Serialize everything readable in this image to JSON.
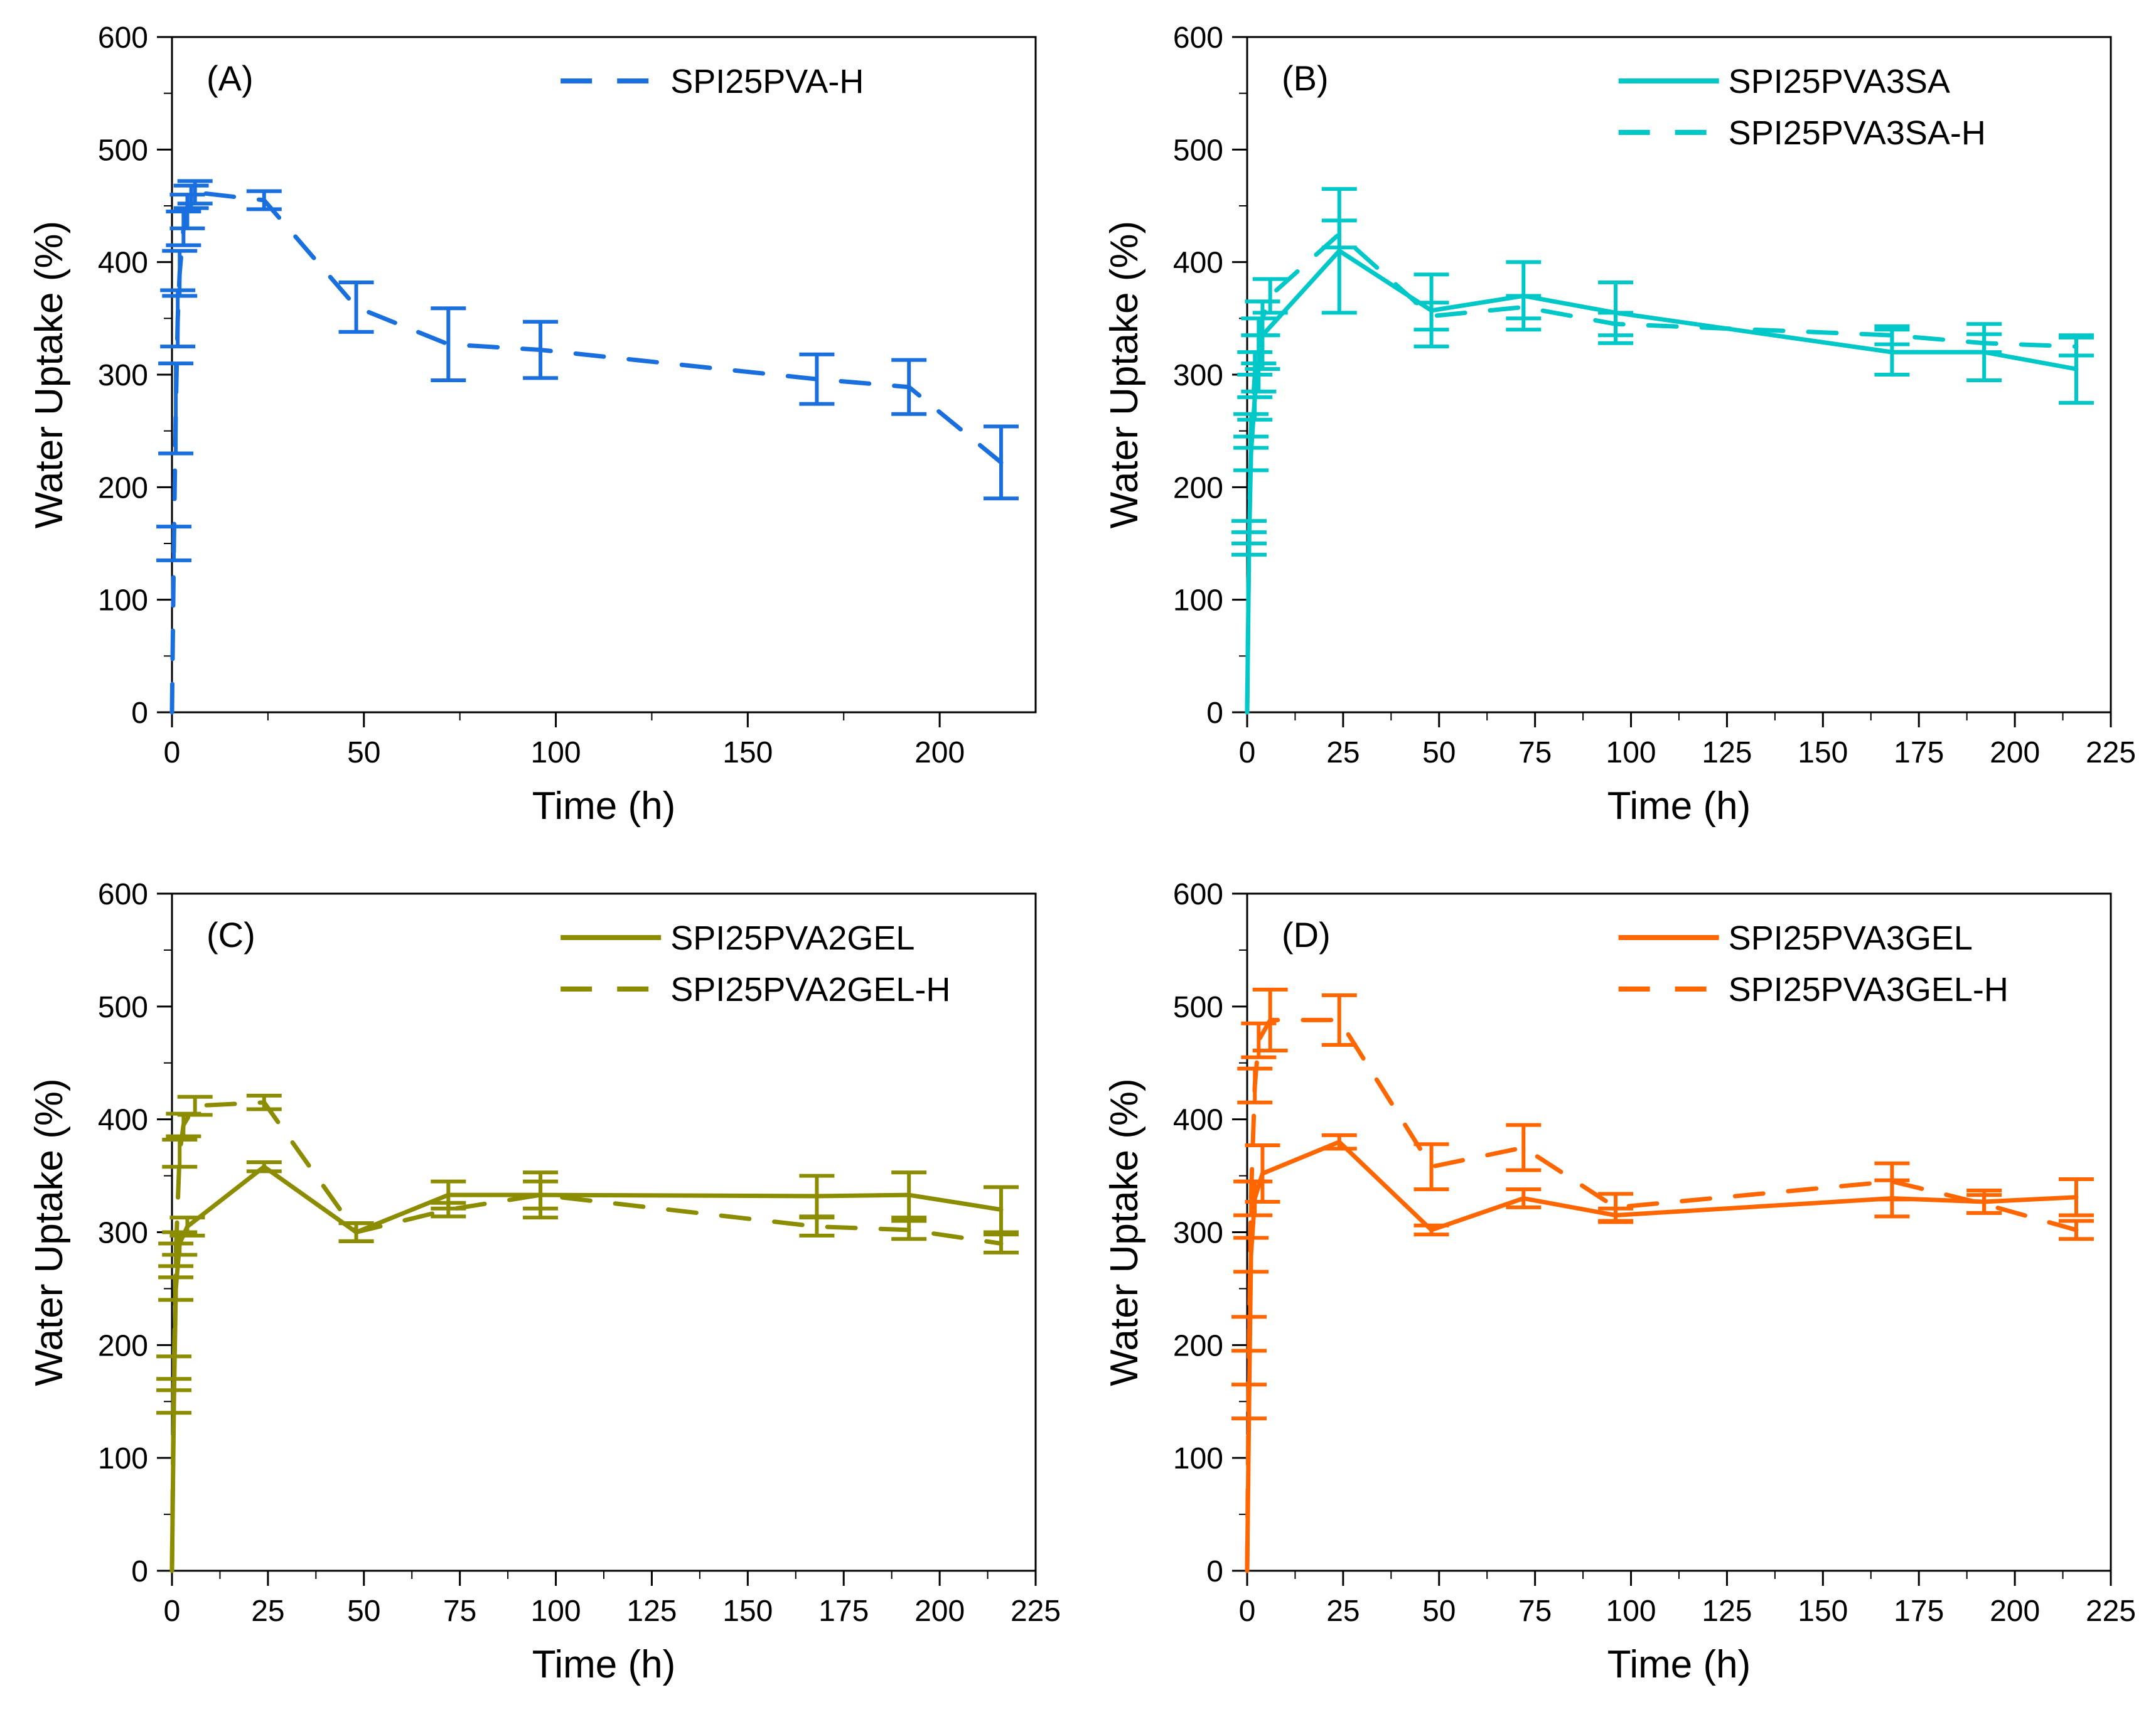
{
  "chart_data": [
    {
      "type": "line",
      "panel_label": "(A)",
      "xlabel": "Time (h)",
      "ylabel": "Water Uptake (%)",
      "xlim": [
        0,
        225
      ],
      "ylim": [
        0,
        600
      ],
      "xticks": [
        0,
        50,
        100,
        150,
        200
      ],
      "yticks": [
        0,
        100,
        200,
        300,
        400,
        500,
        600
      ],
      "legend_position": "top-center",
      "series": [
        {
          "name": "SPI25PVA-H",
          "color": "#1a6fdf",
          "dash": true,
          "x": [
            0,
            0.5,
            1,
            1.5,
            2,
            3,
            4,
            5,
            6,
            24,
            48,
            72,
            96,
            168,
            192,
            216
          ],
          "y": [
            0,
            150,
            270,
            350,
            390,
            430,
            445,
            458,
            462,
            455,
            360,
            327,
            322,
            296,
            289,
            222
          ],
          "err": [
            0,
            15,
            40,
            25,
            20,
            15,
            15,
            10,
            10,
            8,
            22,
            32,
            25,
            22,
            24,
            32
          ]
        }
      ]
    },
    {
      "type": "line",
      "panel_label": "(B)",
      "xlabel": "Time (h)",
      "ylabel": "Water Uptake (%)",
      "xlim": [
        0,
        225
      ],
      "ylim": [
        0,
        600
      ],
      "xticks": [
        0,
        25,
        50,
        75,
        100,
        125,
        150,
        175,
        200,
        225
      ],
      "yticks": [
        0,
        100,
        200,
        300,
        400,
        500,
        600
      ],
      "legend_position": "top-right",
      "series": [
        {
          "name": "SPI25PVA3SA",
          "color": "#00c8c8",
          "dash": false,
          "x": [
            0,
            0.5,
            1,
            2,
            3,
            4,
            24,
            48,
            72,
            96,
            168,
            192,
            216
          ],
          "y": [
            0,
            150,
            230,
            280,
            310,
            335,
            410,
            357,
            370,
            355,
            320,
            320,
            305
          ],
          "err": [
            0,
            10,
            15,
            20,
            25,
            30,
            55,
            32,
            30,
            27,
            20,
            25,
            30
          ]
        },
        {
          "name": "SPI25PVA3SA-H",
          "color": "#00c8c8",
          "dash": true,
          "x": [
            0,
            0.5,
            1,
            2,
            3,
            4,
            6,
            24,
            48,
            72,
            96,
            168,
            192,
            216
          ],
          "y": [
            0,
            160,
            250,
            300,
            330,
            350,
            370,
            425,
            352,
            360,
            345,
            335,
            328,
            325
          ],
          "err": [
            0,
            10,
            15,
            20,
            20,
            15,
            15,
            12,
            12,
            10,
            10,
            8,
            8,
            8
          ]
        }
      ]
    },
    {
      "type": "line",
      "panel_label": "(C)",
      "xlabel": "Time (h)",
      "ylabel": "Water Uptake (%)",
      "xlim": [
        0,
        225
      ],
      "ylim": [
        0,
        600
      ],
      "xticks": [
        0,
        25,
        50,
        75,
        100,
        125,
        150,
        175,
        200,
        225
      ],
      "yticks": [
        0,
        100,
        200,
        300,
        400,
        500,
        600
      ],
      "legend_position": "top-center",
      "series": [
        {
          "name": "SPI25PVA2GEL",
          "color": "#8c8c00",
          "dash": false,
          "x": [
            0,
            0.5,
            1,
            2,
            4,
            24,
            48,
            72,
            96,
            168,
            192,
            216
          ],
          "y": [
            0,
            150,
            250,
            290,
            305,
            358,
            300,
            333,
            333,
            332,
            333,
            320
          ],
          "err": [
            0,
            10,
            10,
            10,
            8,
            4,
            8,
            12,
            12,
            18,
            20,
            20
          ]
        },
        {
          "name": "SPI25PVA2GEL-H",
          "color": "#8c8c00",
          "dash": true,
          "x": [
            0,
            0.5,
            1,
            2,
            3,
            6,
            24,
            48,
            72,
            96,
            168,
            192,
            216
          ],
          "y": [
            0,
            180,
            280,
            370,
            395,
            412,
            415,
            300,
            320,
            333,
            305,
            302,
            290
          ],
          "err": [
            0,
            10,
            10,
            12,
            10,
            8,
            6,
            8,
            6,
            20,
            8,
            8,
            8
          ]
        }
      ]
    },
    {
      "type": "line",
      "panel_label": "(D)",
      "xlabel": "Time (h)",
      "ylabel": "Water Uptake (%)",
      "xlim": [
        0,
        225
      ],
      "ylim": [
        0,
        600
      ],
      "xticks": [
        0,
        25,
        50,
        75,
        100,
        125,
        150,
        175,
        200,
        225
      ],
      "yticks": [
        0,
        100,
        200,
        300,
        400,
        500,
        600
      ],
      "legend_position": "top-right",
      "series": [
        {
          "name": "SPI25PVA3GEL",
          "color": "#ff6600",
          "dash": false,
          "x": [
            0,
            0.5,
            1,
            2,
            4,
            24,
            48,
            72,
            96,
            168,
            192,
            216
          ],
          "y": [
            0,
            150,
            280,
            330,
            352,
            380,
            302,
            330,
            315,
            330,
            327,
            331
          ],
          "err": [
            0,
            15,
            15,
            15,
            25,
            6,
            4,
            8,
            6,
            16,
            10,
            16
          ]
        },
        {
          "name": "SPI25PVA3GEL-H",
          "color": "#ff6600",
          "dash": true,
          "x": [
            0,
            0.5,
            1,
            2,
            3,
            6,
            24,
            48,
            72,
            96,
            168,
            192,
            216
          ],
          "y": [
            0,
            210,
            330,
            430,
            470,
            488,
            488,
            358,
            375,
            322,
            345,
            325,
            302
          ],
          "err": [
            0,
            15,
            15,
            15,
            15,
            27,
            22,
            20,
            20,
            12,
            16,
            8,
            8
          ]
        }
      ]
    }
  ]
}
